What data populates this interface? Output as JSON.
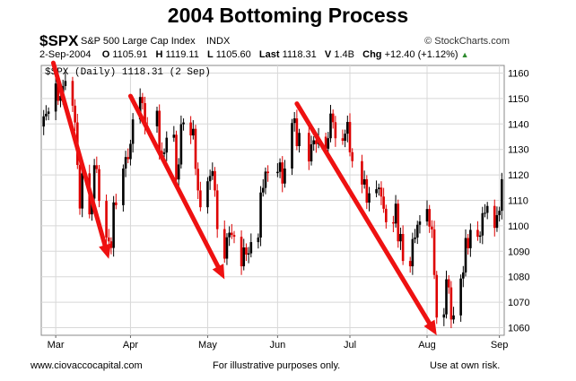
{
  "page": {
    "title": "2004 Bottoming Process",
    "symbol": "$SPX",
    "description": "S&P 500 Large Cap Index",
    "exchange": "INDX",
    "brand": "© StockCharts.com",
    "date": "2-Sep-2004",
    "open_label": "O",
    "open": "1105.91",
    "high_label": "H",
    "high": "1119.11",
    "low_label": "L",
    "low": "1105.60",
    "last_label": "Last",
    "last": "1118.31",
    "vol_label": "V",
    "volume": "1.4B",
    "chg_label": "Chg",
    "change": "+12.40 (+1.12%)",
    "series_label": "$SPX (Daily) 1118.31 (2 Sep)",
    "footer_left": "www.ciovaccocapital.com",
    "footer_center": "For illustrative purposes only.",
    "footer_right": "Use at own risk."
  },
  "colors": {
    "up": "#000000",
    "down": "#dd0000",
    "arrow": "#ee1111",
    "grid": "#d8d8d8"
  },
  "chart_data": {
    "type": "candlestick",
    "x_range": [
      "2004-02-24",
      "2004-09-03"
    ],
    "ylim": [
      1057,
      1163
    ],
    "yticks": [
      1060,
      1070,
      1080,
      1090,
      1100,
      1110,
      1120,
      1130,
      1140,
      1150,
      1160
    ],
    "x_ticks": [
      {
        "label": "Mar",
        "date": "2004-03-01"
      },
      {
        "label": "Apr",
        "date": "2004-04-01"
      },
      {
        "label": "May",
        "date": "2004-05-03"
      },
      {
        "label": "Jun",
        "date": "2004-06-01"
      },
      {
        "label": "Jul",
        "date": "2004-07-01"
      },
      {
        "label": "Aug",
        "date": "2004-08-02"
      },
      {
        "label": "Sep",
        "date": "2004-09-01"
      }
    ],
    "grid": true,
    "arrows": [
      {
        "from": [
          "2004-02-29",
          1164
        ],
        "to": [
          "2004-03-23",
          1087
        ]
      },
      {
        "from": [
          "2004-04-01",
          1151
        ],
        "to": [
          "2004-05-10",
          1079
        ]
      },
      {
        "from": [
          "2004-06-09",
          1148
        ],
        "to": [
          "2004-08-06",
          1057
        ]
      }
    ],
    "closes": [
      {
        "date": "2004-02-24",
        "value": 1139
      },
      {
        "date": "2004-02-25",
        "value": 1143
      },
      {
        "date": "2004-02-26",
        "value": 1144
      },
      {
        "date": "2004-02-27",
        "value": 1144.9
      },
      {
        "date": "2004-03-01",
        "value": 1155.9
      },
      {
        "date": "2004-03-02",
        "value": 1149.1
      },
      {
        "date": "2004-03-03",
        "value": 1151
      },
      {
        "date": "2004-03-04",
        "value": 1154.9
      },
      {
        "date": "2004-03-05",
        "value": 1156.9
      },
      {
        "date": "2004-03-08",
        "value": 1147.2
      },
      {
        "date": "2004-03-09",
        "value": 1140.6
      },
      {
        "date": "2004-03-10",
        "value": 1123.9
      },
      {
        "date": "2004-03-11",
        "value": 1106.8
      },
      {
        "date": "2004-03-12",
        "value": 1120.6
      },
      {
        "date": "2004-03-15",
        "value": 1104.5
      },
      {
        "date": "2004-03-16",
        "value": 1110.7
      },
      {
        "date": "2004-03-17",
        "value": 1123.8
      },
      {
        "date": "2004-03-18",
        "value": 1122.3
      },
      {
        "date": "2004-03-19",
        "value": 1109.8
      },
      {
        "date": "2004-03-22",
        "value": 1095.4
      },
      {
        "date": "2004-03-23",
        "value": 1093.9
      },
      {
        "date": "2004-03-24",
        "value": 1091.3
      },
      {
        "date": "2004-03-25",
        "value": 1109.2
      },
      {
        "date": "2004-03-26",
        "value": 1108.1
      },
      {
        "date": "2004-03-29",
        "value": 1122.5
      },
      {
        "date": "2004-03-30",
        "value": 1127
      },
      {
        "date": "2004-03-31",
        "value": 1126.2
      },
      {
        "date": "2004-04-01",
        "value": 1132.2
      },
      {
        "date": "2004-04-02",
        "value": 1141.8
      },
      {
        "date": "2004-04-05",
        "value": 1150.6
      },
      {
        "date": "2004-04-06",
        "value": 1148.2
      },
      {
        "date": "2004-04-07",
        "value": 1139.3
      },
      {
        "date": "2004-04-08",
        "value": 1139.1
      },
      {
        "date": "2004-04-12",
        "value": 1145.2
      },
      {
        "date": "2004-04-13",
        "value": 1129.4
      },
      {
        "date": "2004-04-14",
        "value": 1128.2
      },
      {
        "date": "2004-04-15",
        "value": 1128.8
      },
      {
        "date": "2004-04-16",
        "value": 1134.6
      },
      {
        "date": "2004-04-19",
        "value": 1135.8
      },
      {
        "date": "2004-04-20",
        "value": 1118.2
      },
      {
        "date": "2004-04-21",
        "value": 1124.1
      },
      {
        "date": "2004-04-22",
        "value": 1139.9
      },
      {
        "date": "2004-04-23",
        "value": 1140.6
      },
      {
        "date": "2004-04-26",
        "value": 1135.5
      },
      {
        "date": "2004-04-27",
        "value": 1138.1
      },
      {
        "date": "2004-04-28",
        "value": 1122.4
      },
      {
        "date": "2004-04-29",
        "value": 1113.9
      },
      {
        "date": "2004-04-30",
        "value": 1107.3
      },
      {
        "date": "2004-05-03",
        "value": 1117.5
      },
      {
        "date": "2004-05-04",
        "value": 1119.6
      },
      {
        "date": "2004-05-05",
        "value": 1121.5
      },
      {
        "date": "2004-05-06",
        "value": 1113.9
      },
      {
        "date": "2004-05-07",
        "value": 1098.7
      },
      {
        "date": "2004-05-10",
        "value": 1087.1
      },
      {
        "date": "2004-05-11",
        "value": 1095.5
      },
      {
        "date": "2004-05-12",
        "value": 1097.3
      },
      {
        "date": "2004-05-13",
        "value": 1096.4
      },
      {
        "date": "2004-05-14",
        "value": 1095.7
      },
      {
        "date": "2004-05-17",
        "value": 1084.1
      },
      {
        "date": "2004-05-18",
        "value": 1091.5
      },
      {
        "date": "2004-05-19",
        "value": 1088.7
      },
      {
        "date": "2004-05-20",
        "value": 1089.2
      },
      {
        "date": "2004-05-21",
        "value": 1093.6
      },
      {
        "date": "2004-05-24",
        "value": 1095.4
      },
      {
        "date": "2004-05-25",
        "value": 1113.1
      },
      {
        "date": "2004-05-26",
        "value": 1114.9
      },
      {
        "date": "2004-05-27",
        "value": 1121.3
      },
      {
        "date": "2004-05-28",
        "value": 1120.7
      },
      {
        "date": "2004-06-01",
        "value": 1121.2
      },
      {
        "date": "2004-06-02",
        "value": 1124.9
      },
      {
        "date": "2004-06-03",
        "value": 1116.6
      },
      {
        "date": "2004-06-04",
        "value": 1122.5
      },
      {
        "date": "2004-06-07",
        "value": 1140.4
      },
      {
        "date": "2004-06-08",
        "value": 1142.2
      },
      {
        "date": "2004-06-09",
        "value": 1131.3
      },
      {
        "date": "2004-06-10",
        "value": 1136.5
      },
      {
        "date": "2004-06-14",
        "value": 1125.3
      },
      {
        "date": "2004-06-15",
        "value": 1132
      },
      {
        "date": "2004-06-16",
        "value": 1133.6
      },
      {
        "date": "2004-06-17",
        "value": 1132.1
      },
      {
        "date": "2004-06-18",
        "value": 1135
      },
      {
        "date": "2004-06-21",
        "value": 1130.3
      },
      {
        "date": "2004-06-22",
        "value": 1134.4
      },
      {
        "date": "2004-06-23",
        "value": 1144.1
      },
      {
        "date": "2004-06-24",
        "value": 1140.7
      },
      {
        "date": "2004-06-25",
        "value": 1134.4
      },
      {
        "date": "2004-06-28",
        "value": 1133.4
      },
      {
        "date": "2004-06-29",
        "value": 1136.2
      },
      {
        "date": "2004-06-30",
        "value": 1140.8
      },
      {
        "date": "2004-07-01",
        "value": 1128.9
      },
      {
        "date": "2004-07-02",
        "value": 1125.4
      },
      {
        "date": "2004-07-06",
        "value": 1116.2
      },
      {
        "date": "2004-07-07",
        "value": 1118.3
      },
      {
        "date": "2004-07-08",
        "value": 1109.1
      },
      {
        "date": "2004-07-09",
        "value": 1112.8
      },
      {
        "date": "2004-07-12",
        "value": 1114.4
      },
      {
        "date": "2004-07-13",
        "value": 1115
      },
      {
        "date": "2004-07-14",
        "value": 1111.5
      },
      {
        "date": "2004-07-15",
        "value": 1106.7
      },
      {
        "date": "2004-07-16",
        "value": 1101.4
      },
      {
        "date": "2004-07-19",
        "value": 1100.9
      },
      {
        "date": "2004-07-20",
        "value": 1108.7
      },
      {
        "date": "2004-07-21",
        "value": 1093.9
      },
      {
        "date": "2004-07-22",
        "value": 1096.8
      },
      {
        "date": "2004-07-23",
        "value": 1086.2
      },
      {
        "date": "2004-07-26",
        "value": 1084.1
      },
      {
        "date": "2004-07-27",
        "value": 1094.8
      },
      {
        "date": "2004-07-28",
        "value": 1095.4
      },
      {
        "date": "2004-07-29",
        "value": 1100.4
      },
      {
        "date": "2004-07-30",
        "value": 1101.7
      },
      {
        "date": "2004-08-02",
        "value": 1106.6
      },
      {
        "date": "2004-08-03",
        "value": 1099.7
      },
      {
        "date": "2004-08-04",
        "value": 1098.6
      },
      {
        "date": "2004-08-05",
        "value": 1080.7
      },
      {
        "date": "2004-08-06",
        "value": 1063.97
      },
      {
        "date": "2004-08-09",
        "value": 1065.2
      },
      {
        "date": "2004-08-10",
        "value": 1079
      },
      {
        "date": "2004-08-11",
        "value": 1075.8
      },
      {
        "date": "2004-08-12",
        "value": 1063.2
      },
      {
        "date": "2004-08-13",
        "value": 1064.8
      },
      {
        "date": "2004-08-16",
        "value": 1079.3
      },
      {
        "date": "2004-08-17",
        "value": 1081.7
      },
      {
        "date": "2004-08-18",
        "value": 1095.2
      },
      {
        "date": "2004-08-19",
        "value": 1091.2
      },
      {
        "date": "2004-08-20",
        "value": 1098.4
      },
      {
        "date": "2004-08-23",
        "value": 1095.7
      },
      {
        "date": "2004-08-24",
        "value": 1096.2
      },
      {
        "date": "2004-08-25",
        "value": 1104.96
      },
      {
        "date": "2004-08-26",
        "value": 1105.1
      },
      {
        "date": "2004-08-27",
        "value": 1107.8
      },
      {
        "date": "2004-08-30",
        "value": 1099.2
      },
      {
        "date": "2004-08-31",
        "value": 1104.2
      },
      {
        "date": "2004-09-01",
        "value": 1105.9
      },
      {
        "date": "2004-09-02",
        "value": 1118.31
      }
    ]
  }
}
